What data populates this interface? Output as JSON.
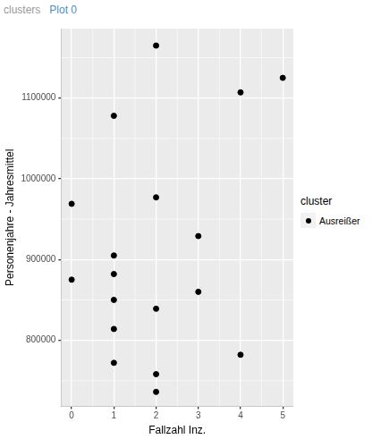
{
  "viewer_tabs": [
    "clusters",
    "Plot 0"
  ],
  "chart_data": {
    "type": "scatter",
    "xlabel": "Fallzahl Inz.",
    "ylabel": "Personenjahre - Jahresmittel",
    "legend_title": "cluster",
    "legend": "right",
    "grid": true,
    "xlim": [
      -0.25,
      5.25
    ],
    "xticks": [
      0,
      1,
      2,
      3,
      4,
      5
    ],
    "ylim": [
      718000,
      1186000
    ],
    "yticks": [
      800000,
      900000,
      1000000,
      1100000
    ],
    "series": [
      {
        "name": "Ausreißer",
        "color": "#000000",
        "marker": "circle",
        "x": [
          2,
          5,
          4,
          1,
          2,
          0,
          3,
          1,
          1,
          0,
          3,
          1,
          2,
          1,
          4,
          1,
          2,
          2
        ],
        "values": [
          1165000,
          1125000,
          1107000,
          1078000,
          977000,
          969000,
          929000,
          905000,
          882000,
          875000,
          860000,
          850000,
          839000,
          814000,
          782000,
          772000,
          758000,
          736000
        ]
      }
    ]
  }
}
